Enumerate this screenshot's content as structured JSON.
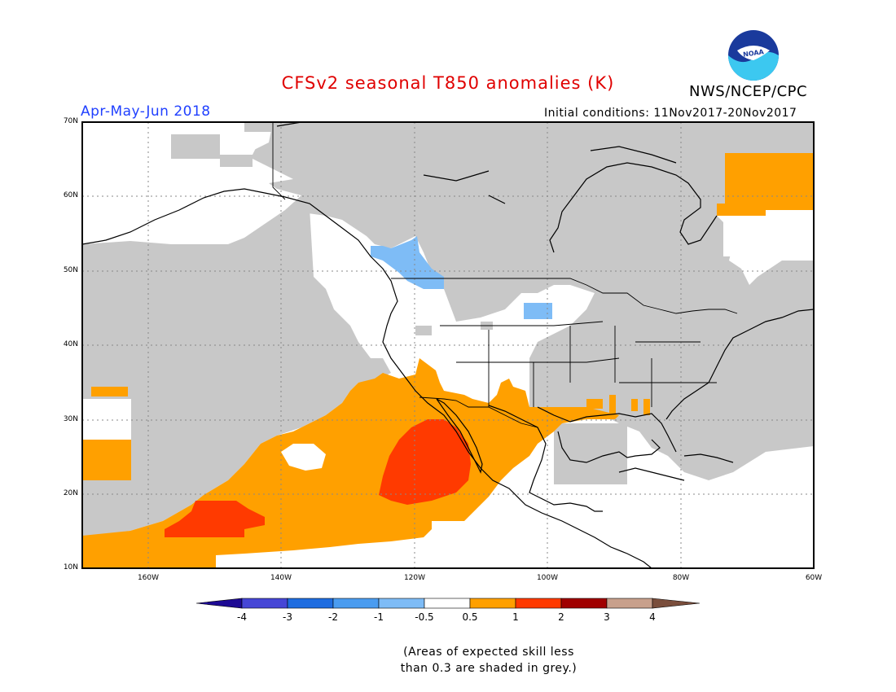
{
  "title": "CFSv2 seasonal T850 anomalies (K)",
  "agency": "NWS/NCEP/CPC",
  "logo_text": "NOAA",
  "period": "Apr-May-Jun 2018",
  "initial_conditions": "Initial conditions: 11Nov2017-20Nov2017",
  "lat_labels": [
    "70N",
    "60N",
    "50N",
    "40N",
    "30N",
    "20N",
    "10N"
  ],
  "lon_labels": [
    "160W",
    "140W",
    "120W",
    "100W",
    "80W",
    "60W"
  ],
  "colorbar": {
    "ticks": [
      "-4",
      "-3",
      "-2",
      "-1",
      "-0.5",
      "0.5",
      "1",
      "2",
      "3",
      "4"
    ],
    "colors": {
      "below_-4": "#1d0a94",
      "-4_-3": "#4646d6",
      "-3_-2": "#1e6ce0",
      "-2_-1": "#4a9cf0",
      "-1_-0.5": "#7ebcf6",
      "-0.5_0.5": "#ffffff",
      "0.5_1": "#ffa000",
      "1_2": "#ff3a00",
      "2_3": "#a00000",
      "3_4": "#c8a08c",
      "above_4": "#7a4e3c"
    }
  },
  "skill_mask_color": "#c8c8c8",
  "note": [
    "(Areas of expected skill less",
    "than 0.3 are shaded in grey.)"
  ]
}
